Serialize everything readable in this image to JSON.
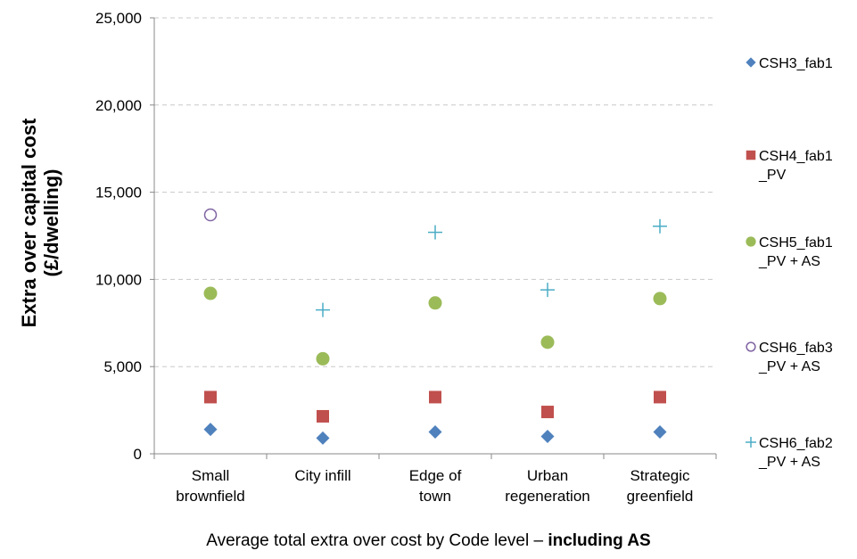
{
  "chart_data": {
    "type": "scatter",
    "caption_main": "Average  total extra over cost by Code level – ",
    "caption_bold": "including AS",
    "ylabel_line1": "Extra over capital cost",
    "ylabel_line2": "(£/dwelling)",
    "ylim": [
      0,
      25000
    ],
    "yticks": [
      0,
      5000,
      10000,
      15000,
      20000,
      25000
    ],
    "ytick_labels": [
      "0",
      "5,000",
      "10,000",
      "15,000",
      "20,000",
      "25,000"
    ],
    "grid": "horizontal dashed",
    "legend_position": "right",
    "categories": [
      [
        "Small",
        "brownfield"
      ],
      [
        "City infill"
      ],
      [
        "Edge of",
        "town"
      ],
      [
        "Urban",
        "regeneration"
      ],
      [
        "Strategic",
        "greenfield"
      ]
    ],
    "series": [
      {
        "name": "CSH3_fab1",
        "legend_lines": [
          "CSH3_fab1"
        ],
        "marker": "diamond",
        "color": "#4F81BD",
        "values": [
          1400,
          900,
          1250,
          1000,
          1250
        ]
      },
      {
        "name": "CSH4_fab1_PV",
        "legend_lines": [
          "CSH4_fab1",
          "_PV"
        ],
        "marker": "square",
        "color": "#C0504D",
        "values": [
          3250,
          2150,
          3250,
          2400,
          3250
        ]
      },
      {
        "name": "CSH5_fab1_PV + AS",
        "legend_lines": [
          "CSH5_fab1",
          "_PV + AS"
        ],
        "marker": "circle",
        "color": "#9BBB59",
        "values": [
          9200,
          5450,
          8650,
          6400,
          8900
        ]
      },
      {
        "name": "CSH6_fab3_PV + AS",
        "legend_lines": [
          "CSH6_fab3",
          "_PV + AS"
        ],
        "marker": "open-circle",
        "color": "#8064A2",
        "values": [
          13700,
          null,
          null,
          null,
          null
        ]
      },
      {
        "name": "CSH6_fab2_PV + AS",
        "legend_lines": [
          "CSH6_fab2",
          "_PV + AS"
        ],
        "marker": "plus",
        "color": "#4BACC6",
        "values": [
          null,
          8250,
          12700,
          9400,
          13050
        ]
      }
    ]
  }
}
